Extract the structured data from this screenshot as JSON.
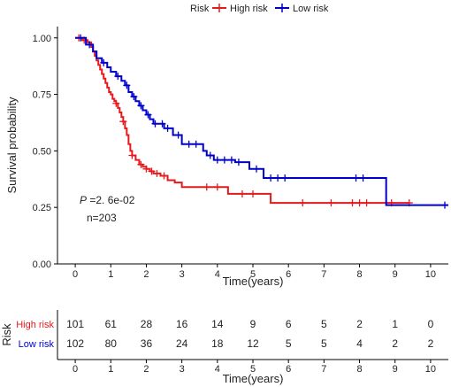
{
  "chart_data": [
    {
      "type": "line",
      "subtype": "kaplan-meier",
      "legend": {
        "title": "Risk",
        "placement": "top",
        "entries": [
          {
            "name": "High risk",
            "color": "#e41a1c"
          },
          {
            "name": "Low risk",
            "color": "#0000cc"
          }
        ]
      },
      "ylabel": "Survival probability",
      "xlabel": "Time(years)",
      "xlim": [
        -0.5,
        10.5
      ],
      "ylim": [
        0,
        1.05
      ],
      "x_ticks": [
        "0",
        "1",
        "2",
        "3",
        "4",
        "5",
        "6",
        "7",
        "8",
        "9",
        "10"
      ],
      "y_ticks": [
        "0.00",
        "0.25",
        "0.50",
        "0.75",
        "1.00"
      ],
      "annotations": {
        "p_label": "P",
        "p_value": " =2. 6e-02",
        "n_text": "n=203"
      },
      "series": [
        {
          "name": "High risk",
          "color": "#e41a1c",
          "steps": [
            [
              0,
              1.0
            ],
            [
              0.2,
              0.99
            ],
            [
              0.35,
              0.98
            ],
            [
              0.45,
              0.96
            ],
            [
              0.5,
              0.94
            ],
            [
              0.55,
              0.92
            ],
            [
              0.6,
              0.9
            ],
            [
              0.65,
              0.88
            ],
            [
              0.7,
              0.86
            ],
            [
              0.75,
              0.84
            ],
            [
              0.8,
              0.82
            ],
            [
              0.85,
              0.8
            ],
            [
              0.9,
              0.78
            ],
            [
              0.95,
              0.76
            ],
            [
              1.0,
              0.75
            ],
            [
              1.05,
              0.73
            ],
            [
              1.1,
              0.72
            ],
            [
              1.15,
              0.71
            ],
            [
              1.2,
              0.69
            ],
            [
              1.25,
              0.67
            ],
            [
              1.3,
              0.65
            ],
            [
              1.35,
              0.63
            ],
            [
              1.4,
              0.6
            ],
            [
              1.45,
              0.57
            ],
            [
              1.5,
              0.53
            ],
            [
              1.55,
              0.5
            ],
            [
              1.6,
              0.48
            ],
            [
              1.7,
              0.46
            ],
            [
              1.8,
              0.44
            ],
            [
              1.9,
              0.43
            ],
            [
              2.0,
              0.42
            ],
            [
              2.1,
              0.41
            ],
            [
              2.2,
              0.4
            ],
            [
              2.4,
              0.39
            ],
            [
              2.6,
              0.37
            ],
            [
              2.8,
              0.36
            ],
            [
              3.0,
              0.34
            ],
            [
              4.0,
              0.34
            ],
            [
              4.3,
              0.31
            ],
            [
              5.0,
              0.31
            ],
            [
              5.5,
              0.27
            ],
            [
              9.4,
              0.27
            ]
          ],
          "censors": [
            0.1,
            0.25,
            1.15,
            1.35,
            1.6,
            1.85,
            2.0,
            2.15,
            2.3,
            2.5,
            3.7,
            4.0,
            4.7,
            5.0,
            6.4,
            7.2,
            7.8,
            8.0,
            8.2,
            8.9,
            9.4
          ]
        },
        {
          "name": "Low risk",
          "color": "#0000cc",
          "steps": [
            [
              0,
              1.0
            ],
            [
              0.3,
              0.97
            ],
            [
              0.5,
              0.94
            ],
            [
              0.6,
              0.91
            ],
            [
              0.75,
              0.89
            ],
            [
              0.9,
              0.87
            ],
            [
              1.0,
              0.85
            ],
            [
              1.15,
              0.83
            ],
            [
              1.3,
              0.81
            ],
            [
              1.4,
              0.79
            ],
            [
              1.5,
              0.76
            ],
            [
              1.6,
              0.74
            ],
            [
              1.7,
              0.72
            ],
            [
              1.8,
              0.7
            ],
            [
              1.9,
              0.68
            ],
            [
              2.0,
              0.66
            ],
            [
              2.1,
              0.64
            ],
            [
              2.2,
              0.62
            ],
            [
              2.5,
              0.6
            ],
            [
              2.75,
              0.57
            ],
            [
              3.0,
              0.53
            ],
            [
              3.5,
              0.53
            ],
            [
              3.6,
              0.5
            ],
            [
              3.7,
              0.48
            ],
            [
              3.9,
              0.46
            ],
            [
              4.5,
              0.45
            ],
            [
              4.9,
              0.42
            ],
            [
              5.3,
              0.38
            ],
            [
              8.7,
              0.38
            ],
            [
              8.75,
              0.26
            ],
            [
              10.5,
              0.26
            ]
          ],
          "censors": [
            0.15,
            0.4,
            0.8,
            1.2,
            1.45,
            1.65,
            1.85,
            2.05,
            2.25,
            2.45,
            2.6,
            2.9,
            3.2,
            3.4,
            3.8,
            4.0,
            4.2,
            4.4,
            4.6,
            5.1,
            5.5,
            5.7,
            5.9,
            7.9,
            8.1,
            10.4
          ]
        }
      ]
    },
    {
      "type": "table",
      "title": "Risk",
      "xlabel": "Time(years)",
      "xlim": [
        -0.5,
        10.5
      ],
      "x_ticks": [
        "0",
        "1",
        "2",
        "3",
        "4",
        "5",
        "6",
        "7",
        "8",
        "9",
        "10"
      ],
      "rows": [
        {
          "name": "High risk",
          "color": "#e41a1c",
          "values": [
            "101",
            "61",
            "28",
            "16",
            "14",
            "9",
            "6",
            "5",
            "2",
            "1",
            "0"
          ]
        },
        {
          "name": "Low risk",
          "color": "#0000cc",
          "values": [
            "102",
            "80",
            "36",
            "24",
            "18",
            "12",
            "5",
            "5",
            "4",
            "2",
            "2"
          ]
        }
      ]
    }
  ]
}
